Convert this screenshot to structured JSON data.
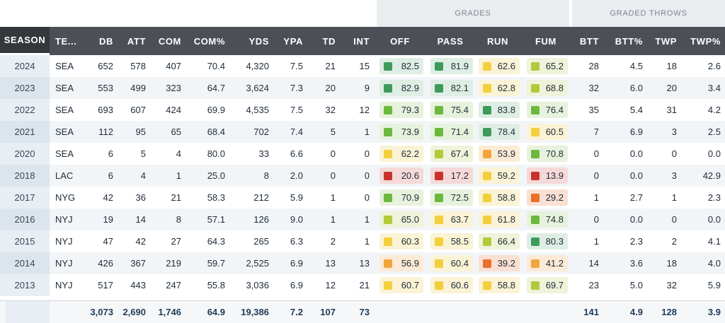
{
  "groups": {
    "grades": "GRADES",
    "graded_throws": "GRADED THROWS"
  },
  "headers": {
    "season": "SEASON",
    "team": "TE...",
    "db": "DB",
    "att": "ATT",
    "com": "COM",
    "com_pct": "COM%",
    "yds": "YDS",
    "ypa": "YPA",
    "td": "TD",
    "int": "INT",
    "off": "OFF",
    "pass": "PASS",
    "run": "RUN",
    "fum": "FUM",
    "btt": "BTT",
    "btt_pct": "BTT%",
    "twp": "TWP",
    "twp_pct": "TWP%"
  },
  "grade_colors": {
    "dark_green": "#3e9a5c",
    "green": "#6cb83f",
    "yellow_green": "#b3c93a",
    "yellow": "#f2cf3c",
    "orange": "#f1a53b",
    "orange_red": "#e8702a",
    "red": "#c9312f"
  },
  "grade_bg": {
    "dark_green": "#dfeee4",
    "green": "#e7f2dd",
    "yellow_green": "#eff3d9",
    "yellow": "#fbf3d6",
    "orange": "#fbebd6",
    "orange_red": "#f9e0d3",
    "red": "#f5d9d8"
  },
  "rows": [
    {
      "season": "2024",
      "team": "SEA",
      "db": "652",
      "att": "578",
      "com": "407",
      "com_pct": "70.4",
      "yds": "4,320",
      "ypa": "7.5",
      "td": "21",
      "int": "15",
      "off": {
        "v": "82.5",
        "c": "dark_green"
      },
      "pass": {
        "v": "81.9",
        "c": "dark_green"
      },
      "run": {
        "v": "62.6",
        "c": "yellow"
      },
      "fum": {
        "v": "65.2",
        "c": "yellow_green"
      },
      "btt": "28",
      "btt_pct": "4.5",
      "twp": "18",
      "twp_pct": "2.6"
    },
    {
      "season": "2023",
      "team": "SEA",
      "db": "553",
      "att": "499",
      "com": "323",
      "com_pct": "64.7",
      "yds": "3,624",
      "ypa": "7.3",
      "td": "20",
      "int": "9",
      "off": {
        "v": "82.9",
        "c": "dark_green"
      },
      "pass": {
        "v": "82.1",
        "c": "dark_green"
      },
      "run": {
        "v": "62.8",
        "c": "yellow"
      },
      "fum": {
        "v": "68.8",
        "c": "yellow_green"
      },
      "btt": "32",
      "btt_pct": "6.0",
      "twp": "20",
      "twp_pct": "3.4"
    },
    {
      "season": "2022",
      "team": "SEA",
      "db": "693",
      "att": "607",
      "com": "424",
      "com_pct": "69.9",
      "yds": "4,535",
      "ypa": "7.5",
      "td": "32",
      "int": "12",
      "off": {
        "v": "79.3",
        "c": "green"
      },
      "pass": {
        "v": "75.4",
        "c": "green"
      },
      "run": {
        "v": "83.8",
        "c": "dark_green"
      },
      "fum": {
        "v": "76.4",
        "c": "green"
      },
      "btt": "35",
      "btt_pct": "5.4",
      "twp": "31",
      "twp_pct": "4.2"
    },
    {
      "season": "2021",
      "team": "SEA",
      "db": "112",
      "att": "95",
      "com": "65",
      "com_pct": "68.4",
      "yds": "702",
      "ypa": "7.4",
      "td": "5",
      "int": "1",
      "off": {
        "v": "73.9",
        "c": "green"
      },
      "pass": {
        "v": "71.4",
        "c": "green"
      },
      "run": {
        "v": "78.4",
        "c": "dark_green"
      },
      "fum": {
        "v": "60.5",
        "c": "yellow"
      },
      "btt": "7",
      "btt_pct": "6.9",
      "twp": "3",
      "twp_pct": "2.5"
    },
    {
      "season": "2020",
      "team": "SEA",
      "db": "6",
      "att": "5",
      "com": "4",
      "com_pct": "80.0",
      "yds": "33",
      "ypa": "6.6",
      "td": "0",
      "int": "0",
      "off": {
        "v": "62.2",
        "c": "yellow"
      },
      "pass": {
        "v": "67.4",
        "c": "yellow_green"
      },
      "run": {
        "v": "53.9",
        "c": "orange"
      },
      "fum": {
        "v": "70.8",
        "c": "green"
      },
      "btt": "0",
      "btt_pct": "0.0",
      "twp": "0",
      "twp_pct": "0.0"
    },
    {
      "season": "2018",
      "team": "LAC",
      "db": "6",
      "att": "4",
      "com": "1",
      "com_pct": "25.0",
      "yds": "8",
      "ypa": "2.0",
      "td": "0",
      "int": "0",
      "off": {
        "v": "20.6",
        "c": "red"
      },
      "pass": {
        "v": "17.2",
        "c": "red"
      },
      "run": {
        "v": "59.2",
        "c": "yellow"
      },
      "fum": {
        "v": "13.9",
        "c": "red"
      },
      "btt": "0",
      "btt_pct": "0.0",
      "twp": "3",
      "twp_pct": "42.9"
    },
    {
      "season": "2017",
      "team": "NYG",
      "db": "42",
      "att": "36",
      "com": "21",
      "com_pct": "58.3",
      "yds": "212",
      "ypa": "5.9",
      "td": "1",
      "int": "0",
      "off": {
        "v": "70.9",
        "c": "green"
      },
      "pass": {
        "v": "72.5",
        "c": "green"
      },
      "run": {
        "v": "58.8",
        "c": "yellow"
      },
      "fum": {
        "v": "29.2",
        "c": "orange_red"
      },
      "btt": "1",
      "btt_pct": "2.7",
      "twp": "1",
      "twp_pct": "2.3"
    },
    {
      "season": "2016",
      "team": "NYJ",
      "db": "19",
      "att": "14",
      "com": "8",
      "com_pct": "57.1",
      "yds": "126",
      "ypa": "9.0",
      "td": "1",
      "int": "1",
      "off": {
        "v": "65.0",
        "c": "yellow_green"
      },
      "pass": {
        "v": "63.7",
        "c": "yellow"
      },
      "run": {
        "v": "61.8",
        "c": "yellow"
      },
      "fum": {
        "v": "74.8",
        "c": "green"
      },
      "btt": "0",
      "btt_pct": "0.0",
      "twp": "0",
      "twp_pct": "0.0"
    },
    {
      "season": "2015",
      "team": "NYJ",
      "db": "47",
      "att": "42",
      "com": "27",
      "com_pct": "64.3",
      "yds": "265",
      "ypa": "6.3",
      "td": "2",
      "int": "1",
      "off": {
        "v": "60.3",
        "c": "yellow"
      },
      "pass": {
        "v": "58.5",
        "c": "yellow"
      },
      "run": {
        "v": "66.4",
        "c": "yellow_green"
      },
      "fum": {
        "v": "80.3",
        "c": "dark_green"
      },
      "btt": "1",
      "btt_pct": "2.3",
      "twp": "2",
      "twp_pct": "4.1"
    },
    {
      "season": "2014",
      "team": "NYJ",
      "db": "426",
      "att": "367",
      "com": "219",
      "com_pct": "59.7",
      "yds": "2,525",
      "ypa": "6.9",
      "td": "13",
      "int": "13",
      "off": {
        "v": "56.9",
        "c": "orange"
      },
      "pass": {
        "v": "60.4",
        "c": "yellow"
      },
      "run": {
        "v": "39.2",
        "c": "orange_red"
      },
      "fum": {
        "v": "41.2",
        "c": "orange"
      },
      "btt": "14",
      "btt_pct": "3.6",
      "twp": "18",
      "twp_pct": "4.0"
    },
    {
      "season": "2013",
      "team": "NYJ",
      "db": "517",
      "att": "443",
      "com": "247",
      "com_pct": "55.8",
      "yds": "3,036",
      "ypa": "6.9",
      "td": "12",
      "int": "21",
      "off": {
        "v": "60.7",
        "c": "yellow"
      },
      "pass": {
        "v": "60.6",
        "c": "yellow"
      },
      "run": {
        "v": "58.8",
        "c": "yellow"
      },
      "fum": {
        "v": "69.7",
        "c": "yellow_green"
      },
      "btt": "23",
      "btt_pct": "5.0",
      "twp": "32",
      "twp_pct": "5.9"
    }
  ],
  "totals": {
    "db": "3,073",
    "att": "2,690",
    "com": "1,746",
    "com_pct": "64.9",
    "yds": "19,386",
    "ypa": "7.2",
    "td": "107",
    "int": "73",
    "btt": "141",
    "btt_pct": "4.9",
    "twp": "128",
    "twp_pct": "3.9"
  }
}
